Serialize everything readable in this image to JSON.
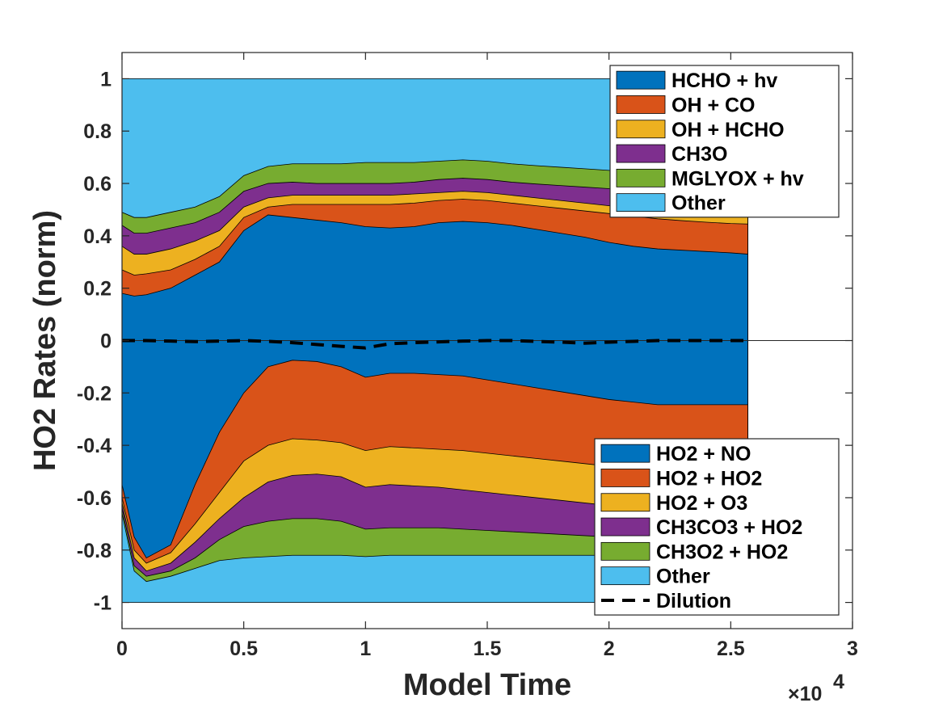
{
  "chart_data": {
    "type": "area",
    "xlabel": "Model Time",
    "ylabel": "HO2 Rates (norm)",
    "x_exponent_label": "×10",
    "x_exponent_power": "4",
    "xlim": [
      0,
      30000
    ],
    "ylim": [
      -1.1,
      1.1
    ],
    "x_ticks": [
      0,
      5000,
      10000,
      15000,
      20000,
      25000,
      30000
    ],
    "x_tick_labels": [
      "0",
      "0.5",
      "1",
      "1.5",
      "2",
      "2.5",
      "3"
    ],
    "y_ticks": [
      1,
      0.8,
      0.6,
      0.4,
      0.2,
      0,
      -0.2,
      -0.4,
      -0.6,
      -0.8,
      -1
    ],
    "y_tick_labels": [
      "1",
      "0.8",
      "0.6",
      "0.4",
      "0.2",
      "0",
      "-0.2",
      "-0.4",
      "-0.6",
      "-0.8",
      "-1"
    ],
    "grid": false,
    "x": [
      0,
      500,
      1000,
      2000,
      3000,
      4000,
      5000,
      6000,
      7000,
      8000,
      9000,
      10000,
      11000,
      12000,
      13000,
      14000,
      15000,
      16000,
      17000,
      18000,
      19000,
      20000,
      21000,
      22000,
      23000,
      24000,
      25000,
      25700
    ],
    "production_cumulative": [
      {
        "name": "HCHO + hv",
        "color": "#0072BD",
        "values": [
          0.18,
          0.17,
          0.175,
          0.2,
          0.25,
          0.3,
          0.42,
          0.48,
          0.47,
          0.46,
          0.45,
          0.435,
          0.43,
          0.435,
          0.45,
          0.455,
          0.45,
          0.44,
          0.425,
          0.41,
          0.395,
          0.375,
          0.36,
          0.35,
          0.345,
          0.34,
          0.335,
          0.33
        ]
      },
      {
        "name": "OH + CO",
        "color": "#D95319",
        "values": [
          0.27,
          0.25,
          0.255,
          0.27,
          0.31,
          0.36,
          0.47,
          0.51,
          0.52,
          0.52,
          0.52,
          0.52,
          0.52,
          0.525,
          0.535,
          0.54,
          0.535,
          0.525,
          0.515,
          0.505,
          0.495,
          0.485,
          0.475,
          0.465,
          0.458,
          0.452,
          0.447,
          0.445
        ]
      },
      {
        "name": "OH + HCHO",
        "color": "#EDB120",
        "values": [
          0.36,
          0.33,
          0.33,
          0.35,
          0.38,
          0.42,
          0.51,
          0.545,
          0.555,
          0.555,
          0.555,
          0.555,
          0.555,
          0.56,
          0.565,
          0.57,
          0.565,
          0.555,
          0.545,
          0.535,
          0.525,
          0.515,
          0.505,
          0.495,
          0.487,
          0.481,
          0.477,
          0.475
        ]
      },
      {
        "name": "CH3O",
        "color": "#7E2F8E",
        "values": [
          0.44,
          0.41,
          0.41,
          0.43,
          0.45,
          0.49,
          0.57,
          0.6,
          0.605,
          0.6,
          0.6,
          0.6,
          0.6,
          0.605,
          0.615,
          0.62,
          0.615,
          0.605,
          0.598,
          0.592,
          0.586,
          0.58,
          0.576,
          0.572,
          0.57,
          0.568,
          0.566,
          0.565
        ]
      },
      {
        "name": "MGLYOX + hv",
        "color": "#77AC30",
        "values": [
          0.49,
          0.47,
          0.47,
          0.49,
          0.51,
          0.55,
          0.63,
          0.665,
          0.675,
          0.675,
          0.675,
          0.68,
          0.68,
          0.68,
          0.685,
          0.69,
          0.685,
          0.675,
          0.668,
          0.662,
          0.656,
          0.65,
          0.645,
          0.64,
          0.637,
          0.635,
          0.633,
          0.632
        ]
      },
      {
        "name": "Other",
        "color": "#4DBEEE",
        "values": [
          1,
          1,
          1,
          1,
          1,
          1,
          1,
          1,
          1,
          1,
          1,
          1,
          1,
          1,
          1,
          1,
          1,
          1,
          1,
          1,
          1,
          1,
          1,
          1,
          1,
          1,
          1,
          1
        ]
      }
    ],
    "loss_cumulative": [
      {
        "name": "HO2 + NO",
        "color": "#0072BD",
        "values": [
          -0.55,
          -0.75,
          -0.83,
          -0.78,
          -0.55,
          -0.35,
          -0.2,
          -0.1,
          -0.075,
          -0.08,
          -0.1,
          -0.14,
          -0.125,
          -0.125,
          -0.13,
          -0.135,
          -0.15,
          -0.165,
          -0.18,
          -0.195,
          -0.21,
          -0.225,
          -0.235,
          -0.245,
          -0.245,
          -0.245,
          -0.245,
          -0.245
        ]
      },
      {
        "name": "HO2 + HO2",
        "color": "#D95319",
        "values": [
          -0.6,
          -0.8,
          -0.85,
          -0.81,
          -0.7,
          -0.58,
          -0.46,
          -0.4,
          -0.375,
          -0.38,
          -0.39,
          -0.42,
          -0.405,
          -0.41,
          -0.415,
          -0.42,
          -0.43,
          -0.44,
          -0.45,
          -0.46,
          -0.47,
          -0.48,
          -0.49,
          -0.5,
          -0.505,
          -0.51,
          -0.515,
          -0.515
        ]
      },
      {
        "name": "HO2 + O3",
        "color": "#EDB120",
        "values": [
          -0.62,
          -0.83,
          -0.88,
          -0.85,
          -0.77,
          -0.68,
          -0.6,
          -0.54,
          -0.515,
          -0.51,
          -0.52,
          -0.56,
          -0.55,
          -0.555,
          -0.56,
          -0.57,
          -0.58,
          -0.59,
          -0.6,
          -0.61,
          -0.62,
          -0.63,
          -0.64,
          -0.65,
          -0.655,
          -0.66,
          -0.665,
          -0.665
        ]
      },
      {
        "name": "CH3CO3 + HO2",
        "color": "#7E2F8E",
        "values": [
          -0.64,
          -0.86,
          -0.9,
          -0.88,
          -0.83,
          -0.76,
          -0.71,
          -0.69,
          -0.68,
          -0.68,
          -0.69,
          -0.72,
          -0.715,
          -0.715,
          -0.715,
          -0.72,
          -0.725,
          -0.73,
          -0.735,
          -0.74,
          -0.745,
          -0.75,
          -0.755,
          -0.76,
          -0.76,
          -0.76,
          -0.76,
          -0.76
        ]
      },
      {
        "name": "CH3O2 + HO2",
        "color": "#77AC30",
        "values": [
          -0.66,
          -0.88,
          -0.92,
          -0.9,
          -0.87,
          -0.84,
          -0.83,
          -0.825,
          -0.82,
          -0.82,
          -0.82,
          -0.825,
          -0.82,
          -0.82,
          -0.82,
          -0.82,
          -0.82,
          -0.82,
          -0.82,
          -0.82,
          -0.82,
          -0.82,
          -0.82,
          -0.82,
          -0.82,
          -0.82,
          -0.82,
          -0.82
        ]
      },
      {
        "name": "Other",
        "color": "#4DBEEE",
        "values": [
          -1,
          -1,
          -1,
          -1,
          -1,
          -1,
          -1,
          -1,
          -1,
          -1,
          -1,
          -1,
          -1,
          -1,
          -1,
          -1,
          -1,
          -1,
          -1,
          -1,
          -1,
          -1,
          -1,
          -1,
          -1,
          -1,
          -1,
          -1
        ]
      }
    ],
    "dilution": {
      "name": "Dilution",
      "color": "#000000",
      "style": "dashed",
      "values": [
        0,
        0,
        0,
        -0.002,
        -0.004,
        -0.002,
        0,
        -0.003,
        -0.008,
        -0.015,
        -0.022,
        -0.028,
        -0.012,
        -0.008,
        -0.005,
        -0.002,
        0,
        0,
        -0.003,
        -0.006,
        -0.01,
        -0.006,
        -0.003,
        0,
        0,
        0,
        0,
        0
      ]
    },
    "legend_top": {
      "placement": "top-right",
      "entries": [
        "HCHO + hv",
        "OH + CO",
        "OH + HCHO",
        "CH3O",
        "MGLYOX + hv",
        "Other"
      ]
    },
    "legend_bottom": {
      "placement": "bottom-right",
      "entries": [
        "HO2 + NO",
        "HO2 + HO2",
        "HO2 + O3",
        "CH3CO3 + HO2",
        "CH3O2 + HO2",
        "Other",
        "Dilution"
      ]
    }
  }
}
